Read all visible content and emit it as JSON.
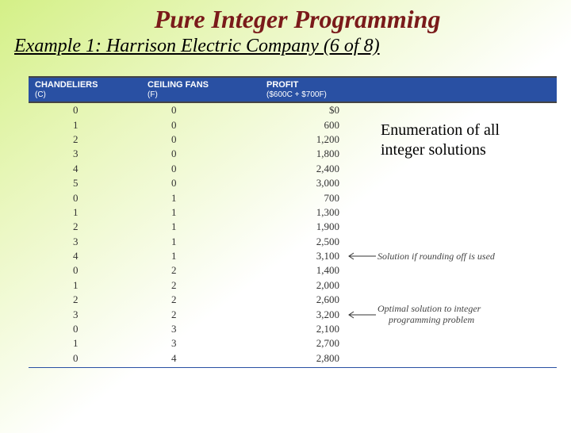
{
  "title": "Pure Integer Programming",
  "subtitle": "Example 1: Harrison Electric Company (6 of 8)",
  "side_label_line1": "Enumeration of all",
  "side_label_line2": "integer solutions",
  "header": {
    "col1": "CHANDELIERS",
    "col1_sub": "(C)",
    "col2": "CEILING FANS",
    "col2_sub": "(F)",
    "col3": "PROFIT",
    "col3_sub": "($600C + $700F)"
  },
  "rows": [
    {
      "c": "0",
      "f": "0",
      "p": "$0"
    },
    {
      "c": "1",
      "f": "0",
      "p": "600"
    },
    {
      "c": "2",
      "f": "0",
      "p": "1,200"
    },
    {
      "c": "3",
      "f": "0",
      "p": "1,800"
    },
    {
      "c": "4",
      "f": "0",
      "p": "2,400"
    },
    {
      "c": "5",
      "f": "0",
      "p": "3,000"
    },
    {
      "c": "0",
      "f": "1",
      "p": "700"
    },
    {
      "c": "1",
      "f": "1",
      "p": "1,300"
    },
    {
      "c": "2",
      "f": "1",
      "p": "1,900"
    },
    {
      "c": "3",
      "f": "1",
      "p": "2,500"
    },
    {
      "c": "4",
      "f": "1",
      "p": "3,100",
      "note": "Solution if rounding off is used"
    },
    {
      "c": "0",
      "f": "2",
      "p": "1,400"
    },
    {
      "c": "1",
      "f": "2",
      "p": "2,000"
    },
    {
      "c": "2",
      "f": "2",
      "p": "2,600"
    },
    {
      "c": "3",
      "f": "2",
      "p": "3,200",
      "note": "Optimal solution to integer",
      "note2": "programming problem"
    },
    {
      "c": "0",
      "f": "3",
      "p": "2,100"
    },
    {
      "c": "1",
      "f": "3",
      "p": "2,700"
    },
    {
      "c": "0",
      "f": "4",
      "p": "2,800"
    }
  ],
  "colors": {
    "header_bg": "#2950a3",
    "title_color": "#7a1a1a",
    "rule_color": "#2950a3"
  }
}
